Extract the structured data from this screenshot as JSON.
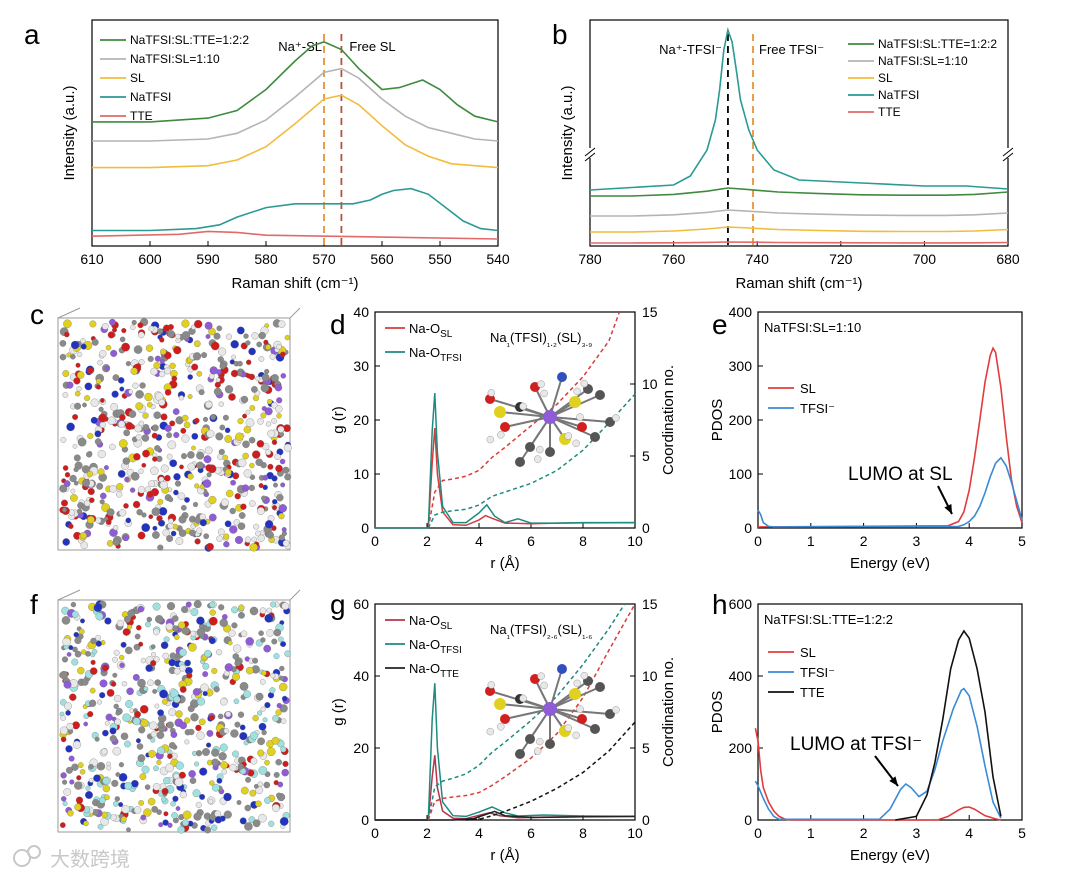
{
  "panel_labels": {
    "a": "a",
    "b": "b",
    "c": "c",
    "d": "d",
    "e": "e",
    "f": "f",
    "g": "g",
    "h": "h"
  },
  "watermark": "大数跨境",
  "chart_data": [
    {
      "id": "a",
      "type": "line",
      "xlabel": "Raman shift (cm⁻¹)",
      "ylabel": "Intensity (a.u.)",
      "xlim": [
        610,
        540
      ],
      "x_reversed": true,
      "xticks": [
        610,
        600,
        590,
        580,
        570,
        560,
        550,
        540
      ],
      "annotations": [
        {
          "text": "Na⁺-SL",
          "x": 570
        },
        {
          "text": "Free SL",
          "x": 567
        }
      ],
      "vlines": [
        {
          "x": 570,
          "color": "#e8913a"
        },
        {
          "x": 567,
          "color": "#b5523a"
        }
      ],
      "series": [
        {
          "name": "NaTFSI:SL:TTE=1:2:2",
          "color": "#3f8a3f",
          "offset": 0.62,
          "x": [
            610,
            600,
            590,
            585,
            580,
            575,
            572,
            570,
            567,
            564,
            560,
            557,
            553,
            550,
            547,
            544,
            540
          ],
          "y": [
            0,
            0,
            0.02,
            0.06,
            0.17,
            0.32,
            0.4,
            0.42,
            0.38,
            0.28,
            0.17,
            0.18,
            0.22,
            0.17,
            0.09,
            0.03,
            0
          ]
        },
        {
          "name": "NaTFSI:SL=1:10",
          "color": "#b4b4b4",
          "offset": 0.52,
          "x": [
            610,
            600,
            590,
            585,
            580,
            575,
            570,
            567,
            564,
            560,
            556,
            552,
            548,
            544,
            540
          ],
          "y": [
            0,
            0,
            0.01,
            0.04,
            0.11,
            0.23,
            0.36,
            0.38,
            0.33,
            0.22,
            0.13,
            0.07,
            0.04,
            0.01,
            0
          ]
        },
        {
          "name": "SL",
          "color": "#f2bc3c",
          "offset": 0.38,
          "x": [
            610,
            600,
            590,
            585,
            580,
            575,
            570,
            567,
            564,
            560,
            556,
            552,
            548,
            544,
            540
          ],
          "y": [
            0,
            0,
            0.01,
            0.04,
            0.11,
            0.23,
            0.36,
            0.38,
            0.33,
            0.22,
            0.12,
            0.06,
            0.02,
            0.01,
            0
          ]
        },
        {
          "name": "NaTFSI",
          "color": "#2a9a94",
          "offset": 0.05,
          "x": [
            610,
            600,
            592,
            588,
            585,
            580,
            575,
            570,
            565,
            562,
            560,
            558,
            555,
            552,
            549,
            546,
            543,
            540
          ],
          "y": [
            0,
            0,
            0.01,
            0.03,
            0.07,
            0.12,
            0.14,
            0.14,
            0.14,
            0.16,
            0.19,
            0.21,
            0.22,
            0.19,
            0.12,
            0.05,
            0.01,
            0
          ]
        },
        {
          "name": "TTE",
          "color": "#e06a6a",
          "offset": 0.0,
          "x": [
            610,
            595,
            590,
            585,
            580,
            560,
            540
          ],
          "y": [
            0.02,
            0.03,
            0.045,
            0.04,
            0.025,
            0.015,
            0.005
          ]
        }
      ]
    },
    {
      "id": "b",
      "type": "line",
      "xlabel": "Raman shift (cm⁻¹)",
      "ylabel": "Intensity (a.u.)",
      "xlim": [
        780,
        680
      ],
      "x_reversed": true,
      "xticks": [
        780,
        760,
        740,
        720,
        700,
        680
      ],
      "annotations": [
        {
          "text": "Na⁺-TFSI⁻",
          "x": 747
        },
        {
          "text": "Free TFSI⁻",
          "x": 741
        }
      ],
      "vlines": [
        {
          "x": 747,
          "color": "#000000"
        },
        {
          "x": 741,
          "color": "#e8913a"
        }
      ],
      "series": [
        {
          "name": "NaTFSI:SL:TTE=1:2:2",
          "color": "#3f8a3f"
        },
        {
          "name": "NaTFSI:SL=1:10",
          "color": "#b4b4b4"
        },
        {
          "name": "SL",
          "color": "#f2bc3c"
        },
        {
          "name": "NaTFSI",
          "color": "#2a9a94"
        },
        {
          "name": "TTE",
          "color": "#e06a6a"
        }
      ]
    },
    {
      "id": "d",
      "type": "line",
      "xlabel": "r (Å)",
      "ylabel": "g (r)",
      "y2label": "Coordination no.",
      "xlim": [
        0,
        10
      ],
      "ylim": [
        0,
        40
      ],
      "y2lim": [
        0,
        15
      ],
      "xticks": [
        0,
        2,
        4,
        6,
        8,
        10
      ],
      "yticks": [
        0,
        10,
        20,
        30,
        40
      ],
      "y2ticks": [
        0,
        5,
        10,
        15
      ],
      "inset_label": "Na₁(TFSI)₁.₂(SL)₃.₉",
      "series": [
        {
          "name": "Na-O",
          "sub": "SL",
          "color": "#d63c3c",
          "x": [
            0,
            2.05,
            2.2,
            2.3,
            2.4,
            2.6,
            3.0,
            3.5,
            4.0,
            4.25,
            4.5,
            5.0,
            6.0,
            7.0,
            8.0,
            10.0
          ],
          "y": [
            0,
            0,
            12,
            18.5,
            10,
            3,
            0.6,
            0.5,
            1.5,
            2.3,
            1.8,
            0.9,
            0.8,
            0.9,
            0.95,
            1.0
          ]
        },
        {
          "name": "Na-O",
          "sub": "TFSI",
          "color": "#1f8a80",
          "x": [
            0,
            2.05,
            2.2,
            2.3,
            2.4,
            2.6,
            3.0,
            3.5,
            4.0,
            4.3,
            4.6,
            5.0,
            5.5,
            6.0,
            7.0,
            8.0,
            10.0
          ],
          "y": [
            0,
            0,
            18,
            25,
            14,
            4,
            1.0,
            1.0,
            2.8,
            4.3,
            2.2,
            1.0,
            1.7,
            0.9,
            0.9,
            1.0,
            1.0
          ]
        },
        {
          "name": "CN Na-O(SL)",
          "color": "#d63c3c",
          "dashed": true,
          "axis": "y2",
          "x": [
            2.05,
            2.3,
            2.6,
            3.0,
            3.5,
            4.0,
            4.5,
            5.0,
            6.0,
            7.0,
            8.0,
            9.0,
            9.4
          ],
          "y": [
            0,
            2.5,
            3.3,
            3.4,
            3.6,
            4.0,
            4.9,
            5.6,
            7.1,
            8.6,
            10.5,
            13.0,
            15.0
          ]
        },
        {
          "name": "CN Na-O(TFSI)",
          "color": "#1f8a80",
          "dashed": true,
          "axis": "y2",
          "x": [
            2.05,
            2.3,
            2.6,
            3.0,
            3.5,
            4.0,
            4.5,
            5.0,
            6.0,
            7.0,
            8.0,
            9.0,
            10.0
          ],
          "y": [
            0,
            0.9,
            1.1,
            1.2,
            1.3,
            1.6,
            2.2,
            2.5,
            3.1,
            4.0,
            5.4,
            7.3,
            9.3
          ]
        }
      ]
    },
    {
      "id": "e",
      "type": "line",
      "xlabel": "Energy (eV)",
      "ylabel": "PDOS",
      "xlim": [
        0,
        5
      ],
      "ylim": [
        0,
        400
      ],
      "xticks": [
        0,
        1,
        2,
        3,
        4,
        5
      ],
      "yticks": [
        0,
        100,
        200,
        300,
        400
      ],
      "title_text": "NaTFSI:SL=1:10",
      "annotation": "LUMO at SL",
      "series": [
        {
          "name": "SL",
          "color": "#e23b3b",
          "x": [
            0,
            3.6,
            3.8,
            3.9,
            4.0,
            4.1,
            4.2,
            4.3,
            4.4,
            4.45,
            4.5,
            4.6,
            4.7,
            4.8,
            4.9,
            5.0
          ],
          "y": [
            2,
            4,
            12,
            30,
            70,
            130,
            200,
            270,
            320,
            333,
            325,
            260,
            170,
            90,
            40,
            10
          ]
        },
        {
          "name": "TFSI⁻",
          "color": "#3a8ad6",
          "x": [
            0,
            0.05,
            0.1,
            0.2,
            0.3,
            3.8,
            3.9,
            4.0,
            4.1,
            4.2,
            4.3,
            4.4,
            4.5,
            4.6,
            4.7,
            4.8,
            4.9,
            5.0
          ],
          "y": [
            33,
            25,
            10,
            3,
            2,
            3,
            6,
            12,
            22,
            40,
            65,
            95,
            120,
            130,
            115,
            85,
            50,
            15
          ]
        }
      ]
    },
    {
      "id": "g",
      "type": "line",
      "xlabel": "r (Å)",
      "ylabel": "g (r)",
      "y2label": "Coordination no.",
      "xlim": [
        0,
        10
      ],
      "ylim": [
        0,
        60
      ],
      "y2lim": [
        0,
        15
      ],
      "xticks": [
        0,
        2,
        4,
        6,
        8,
        10
      ],
      "yticks": [
        0,
        20,
        40,
        60
      ],
      "y2ticks": [
        0,
        5,
        10,
        15
      ],
      "inset_label": "Na₁(TFSI)₂.₆(SL)₁.₆",
      "series": [
        {
          "name": "Na-O",
          "sub": "SL",
          "color": "#b5344a",
          "x": [
            0,
            2.05,
            2.2,
            2.3,
            2.4,
            2.6,
            3.0,
            3.5,
            4.0,
            4.4,
            4.8,
            5.5,
            6.5,
            8.0,
            10.0
          ],
          "y": [
            0,
            0,
            12,
            18,
            9,
            2.5,
            0.5,
            0.4,
            1.3,
            2.0,
            1.2,
            0.6,
            0.8,
            0.9,
            1.0
          ]
        },
        {
          "name": "Na-O",
          "sub": "TFSI",
          "color": "#1f8a80",
          "x": [
            0,
            2.05,
            2.2,
            2.3,
            2.4,
            2.6,
            3.0,
            3.5,
            4.0,
            4.5,
            5.0,
            5.5,
            6.5,
            8.0,
            10.0
          ],
          "y": [
            0,
            0,
            28,
            38,
            20,
            5,
            1.2,
            1.0,
            2.2,
            3.6,
            2.0,
            1.1,
            1.4,
            1.1,
            1.0
          ]
        },
        {
          "name": "Na-O",
          "sub": "TTE",
          "color": "#222222",
          "x": [
            0,
            3.0,
            3.8,
            4.2,
            4.6,
            5.0,
            6.0,
            8.0,
            10.0
          ],
          "y": [
            0,
            0,
            0.4,
            1.4,
            2.4,
            1.2,
            0.7,
            0.9,
            1.0
          ]
        },
        {
          "name": "CN Na-O(TFSI)",
          "color": "#1f8a80",
          "dashed": true,
          "axis": "y2",
          "x": [
            2.05,
            2.3,
            2.6,
            3.0,
            3.5,
            4.0,
            4.5,
            5.0,
            6.0,
            7.0,
            8.0,
            9.0,
            9.6
          ],
          "y": [
            0,
            2.3,
            2.7,
            2.9,
            3.2,
            3.8,
            4.7,
            5.4,
            6.9,
            8.6,
            10.8,
            13.3,
            15.0
          ]
        },
        {
          "name": "CN Na-O(SL)",
          "color": "#d63c3c",
          "dashed": true,
          "axis": "y2",
          "x": [
            2.05,
            2.3,
            2.6,
            3.0,
            3.5,
            4.0,
            4.5,
            5.0,
            6.0,
            7.0,
            8.0,
            9.0,
            10.0
          ],
          "y": [
            0,
            1.3,
            1.5,
            1.6,
            1.7,
            1.9,
            2.4,
            3.0,
            4.3,
            6.0,
            8.5,
            11.8,
            15.0
          ]
        },
        {
          "name": "CN Na-O(TTE)",
          "color": "#111111",
          "dashed": true,
          "axis": "y2",
          "x": [
            3.5,
            4.0,
            4.5,
            5.0,
            6.0,
            7.0,
            8.0,
            9.0,
            10.0
          ],
          "y": [
            0,
            0.05,
            0.3,
            0.6,
            1.3,
            2.2,
            3.3,
            4.8,
            6.8
          ]
        }
      ]
    },
    {
      "id": "h",
      "type": "line",
      "xlabel": "Energy (eV)",
      "ylabel": "PDOS",
      "xlim": [
        0,
        5
      ],
      "ylim": [
        0,
        600
      ],
      "xticks": [
        0,
        1,
        2,
        3,
        4,
        5
      ],
      "yticks": [
        0,
        200,
        400,
        600
      ],
      "title_text": "NaTFSI:SL:TTE=1:2:2",
      "annotation": "LUMO at TFSI⁻",
      "series": [
        {
          "name": "SL",
          "color": "#e23b3b",
          "x": [
            -0.05,
            0,
            0.05,
            0.1,
            0.2,
            0.3,
            0.4,
            0.5,
            0.6,
            3.4,
            3.6,
            3.8,
            3.9,
            4.0,
            4.1,
            4.3,
            4.5,
            4.6
          ],
          "y": [
            255,
            220,
            140,
            90,
            50,
            25,
            10,
            3,
            0,
            0,
            10,
            28,
            35,
            36,
            30,
            12,
            3,
            0
          ]
        },
        {
          "name": "TFSI⁻",
          "color": "#3a8ad6",
          "x": [
            -0.05,
            0,
            0.1,
            0.2,
            0.3,
            0.4,
            2.3,
            2.5,
            2.7,
            2.8,
            2.9,
            3.05,
            3.2,
            3.35,
            3.5,
            3.7,
            3.85,
            3.9,
            4.0,
            4.15,
            4.3,
            4.45,
            4.6
          ],
          "y": [
            108,
            95,
            60,
            30,
            10,
            2,
            2,
            30,
            85,
            100,
            90,
            65,
            80,
            140,
            220,
            310,
            360,
            365,
            345,
            260,
            150,
            50,
            5
          ]
        },
        {
          "name": "TTE",
          "color": "#111111",
          "x": [
            2.6,
            3.0,
            3.2,
            3.35,
            3.5,
            3.65,
            3.8,
            3.9,
            4.0,
            4.15,
            4.3,
            4.45,
            4.6
          ],
          "y": [
            0,
            10,
            70,
            160,
            280,
            420,
            500,
            525,
            505,
            420,
            300,
            120,
            10
          ]
        }
      ]
    }
  ]
}
